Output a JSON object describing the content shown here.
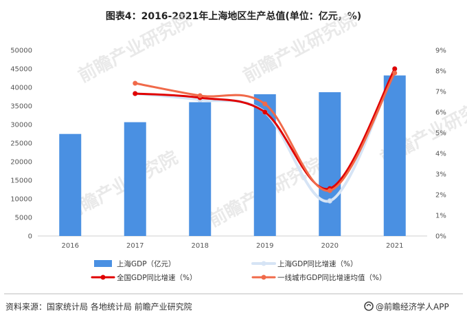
{
  "chart_data": {
    "type": "bar",
    "title": "图表4：2016-2021年上海地区生产总值(单位：亿元，%)",
    "categories": [
      "2016",
      "2017",
      "2018",
      "2019",
      "2020",
      "2021"
    ],
    "left_axis": {
      "ylim": [
        0,
        50000
      ],
      "ticks": [
        0,
        5000,
        10000,
        15000,
        20000,
        25000,
        30000,
        35000,
        40000,
        45000,
        50000
      ]
    },
    "right_axis": {
      "ylim": [
        0,
        9
      ],
      "ticks": [
        "0%",
        "1%",
        "2%",
        "3%",
        "4%",
        "5%",
        "6%",
        "7%",
        "8%",
        "9%"
      ]
    },
    "series": [
      {
        "name": "上海GDP（亿元）",
        "type": "bar",
        "axis": "left",
        "color": "#4a90e2",
        "values": [
          27466,
          30633,
          36012,
          38155,
          38701,
          43215
        ]
      },
      {
        "name": "上海GDP同比增速（%）",
        "type": "line",
        "axis": "right",
        "color": "#d6e4f5",
        "values": [
          null,
          6.9,
          6.6,
          6.0,
          1.7,
          8.1
        ]
      },
      {
        "name": "全国GDP同比增速（%）",
        "type": "line",
        "axis": "right",
        "color": "#e00000",
        "values": [
          null,
          6.9,
          6.7,
          6.0,
          2.3,
          8.1
        ]
      },
      {
        "name": "一线城市GDP同比增速均值（%）",
        "type": "line",
        "axis": "right",
        "color": "#f06a4a",
        "values": [
          null,
          7.4,
          6.8,
          6.4,
          2.2,
          7.9
        ]
      }
    ]
  },
  "watermark": "前瞻产业研究院",
  "footer": {
    "source": "资料来源：国家统计局 各地统计局 前瞻产业研究院",
    "brand": "@前瞻经济学人APP"
  }
}
